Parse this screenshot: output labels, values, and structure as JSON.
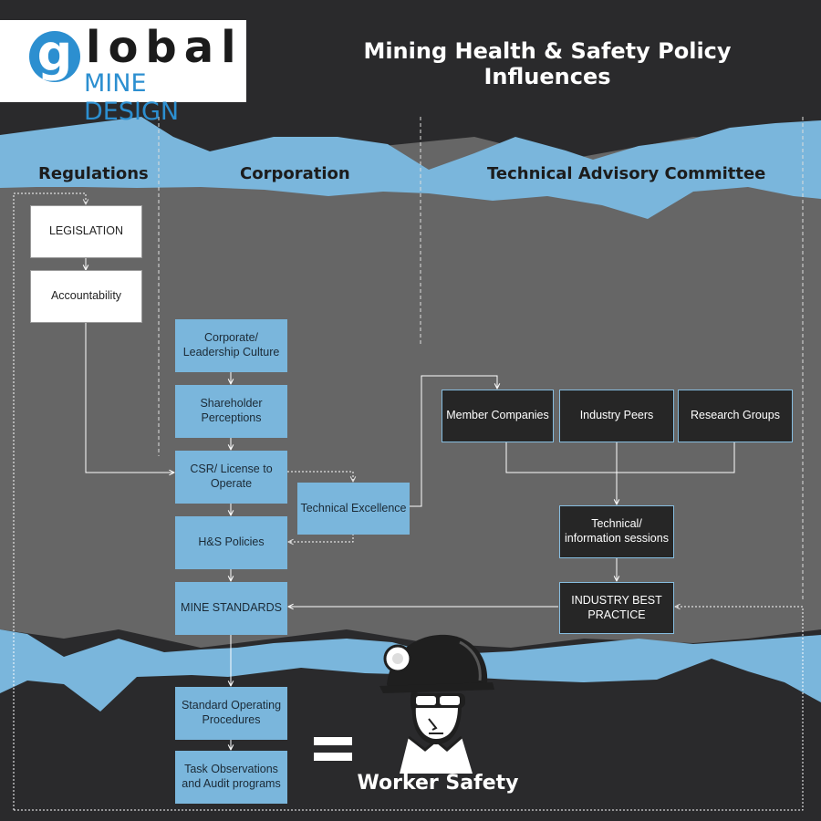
{
  "logo": {
    "letter": "g",
    "word": "lobal",
    "subtitle": "MINE DESIGN"
  },
  "title": "Mining Health & Safety Policy Influences",
  "columns": {
    "regulations": "Regulations",
    "corporation": "Corporation",
    "technical_advisory": "Technical Advisory Committee"
  },
  "boxes": {
    "legislation": "LEGISLATION",
    "accountability": "Accountability",
    "corporate_culture": "Corporate/ Leadership Culture",
    "shareholder": "Shareholder Perceptions",
    "csr": "CSR/ License to Operate",
    "technical_excellence": "Technical Excellence",
    "hs_policies": "H&S Policies",
    "mine_standards": "MINE STANDARDS",
    "sop": "Standard Operating Procedures",
    "task_observations": "Task Observations and Audit programs",
    "member_companies": "Member Companies",
    "industry_peers": "Industry Peers",
    "research_groups": "Research Groups",
    "technical_sessions": "Technical/ information sessions",
    "industry_best_practice": "INDUSTRY BEST PRACTICE"
  },
  "result": {
    "label": "Worker Safety"
  },
  "colors": {
    "background": "#2a2a2c",
    "panel": "#666666",
    "band": "#7ab6dc",
    "blue_box": "#7ab6dc",
    "white_box": "#ffffff",
    "dark_box": "#262626",
    "logo_accent": "#2c8fd0"
  }
}
